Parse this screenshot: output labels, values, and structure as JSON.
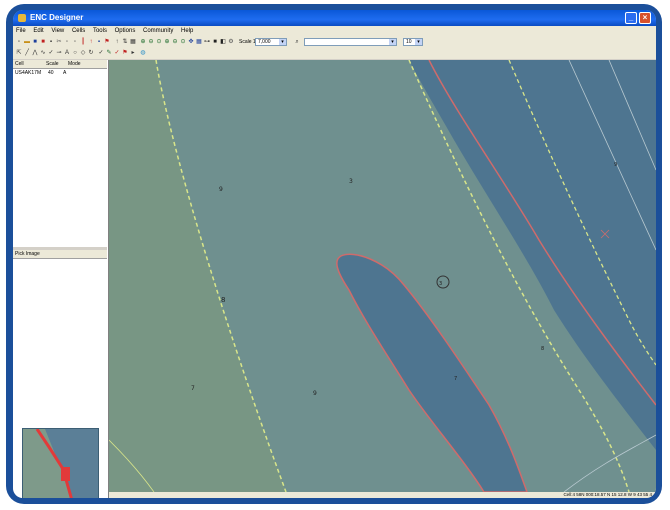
{
  "window": {
    "title": "ENC Designer"
  },
  "menu": [
    "File",
    "Edit",
    "View",
    "Cells",
    "Tools",
    "Options",
    "Community",
    "Help"
  ],
  "toolbar": {
    "scale_label": "Scale 1:",
    "scale_value": "7,000",
    "search_value": "",
    "zoom_value": "10"
  },
  "cells_panel": {
    "headers": [
      "Cell",
      "Scale",
      "Mode"
    ],
    "rows": [
      {
        "cell": "US4AK17M",
        "scale": "40",
        "mode": "A"
      }
    ]
  },
  "pick_panel": {
    "title": "Pick Image"
  },
  "status": {
    "text": "Cell:4  58N 000:18.57 N 15 12.8 W  9 43 55 4"
  },
  "colors": {
    "deep_water": "#4e7590",
    "medium_water": "#6f908f",
    "shallow_water": "#789684",
    "danger_contour": "#cf6b6b",
    "depth_contour": "#d8e58a"
  },
  "soundings": [
    "9",
    "3",
    "8",
    "7",
    "9",
    "3",
    "8",
    "7",
    "9"
  ]
}
